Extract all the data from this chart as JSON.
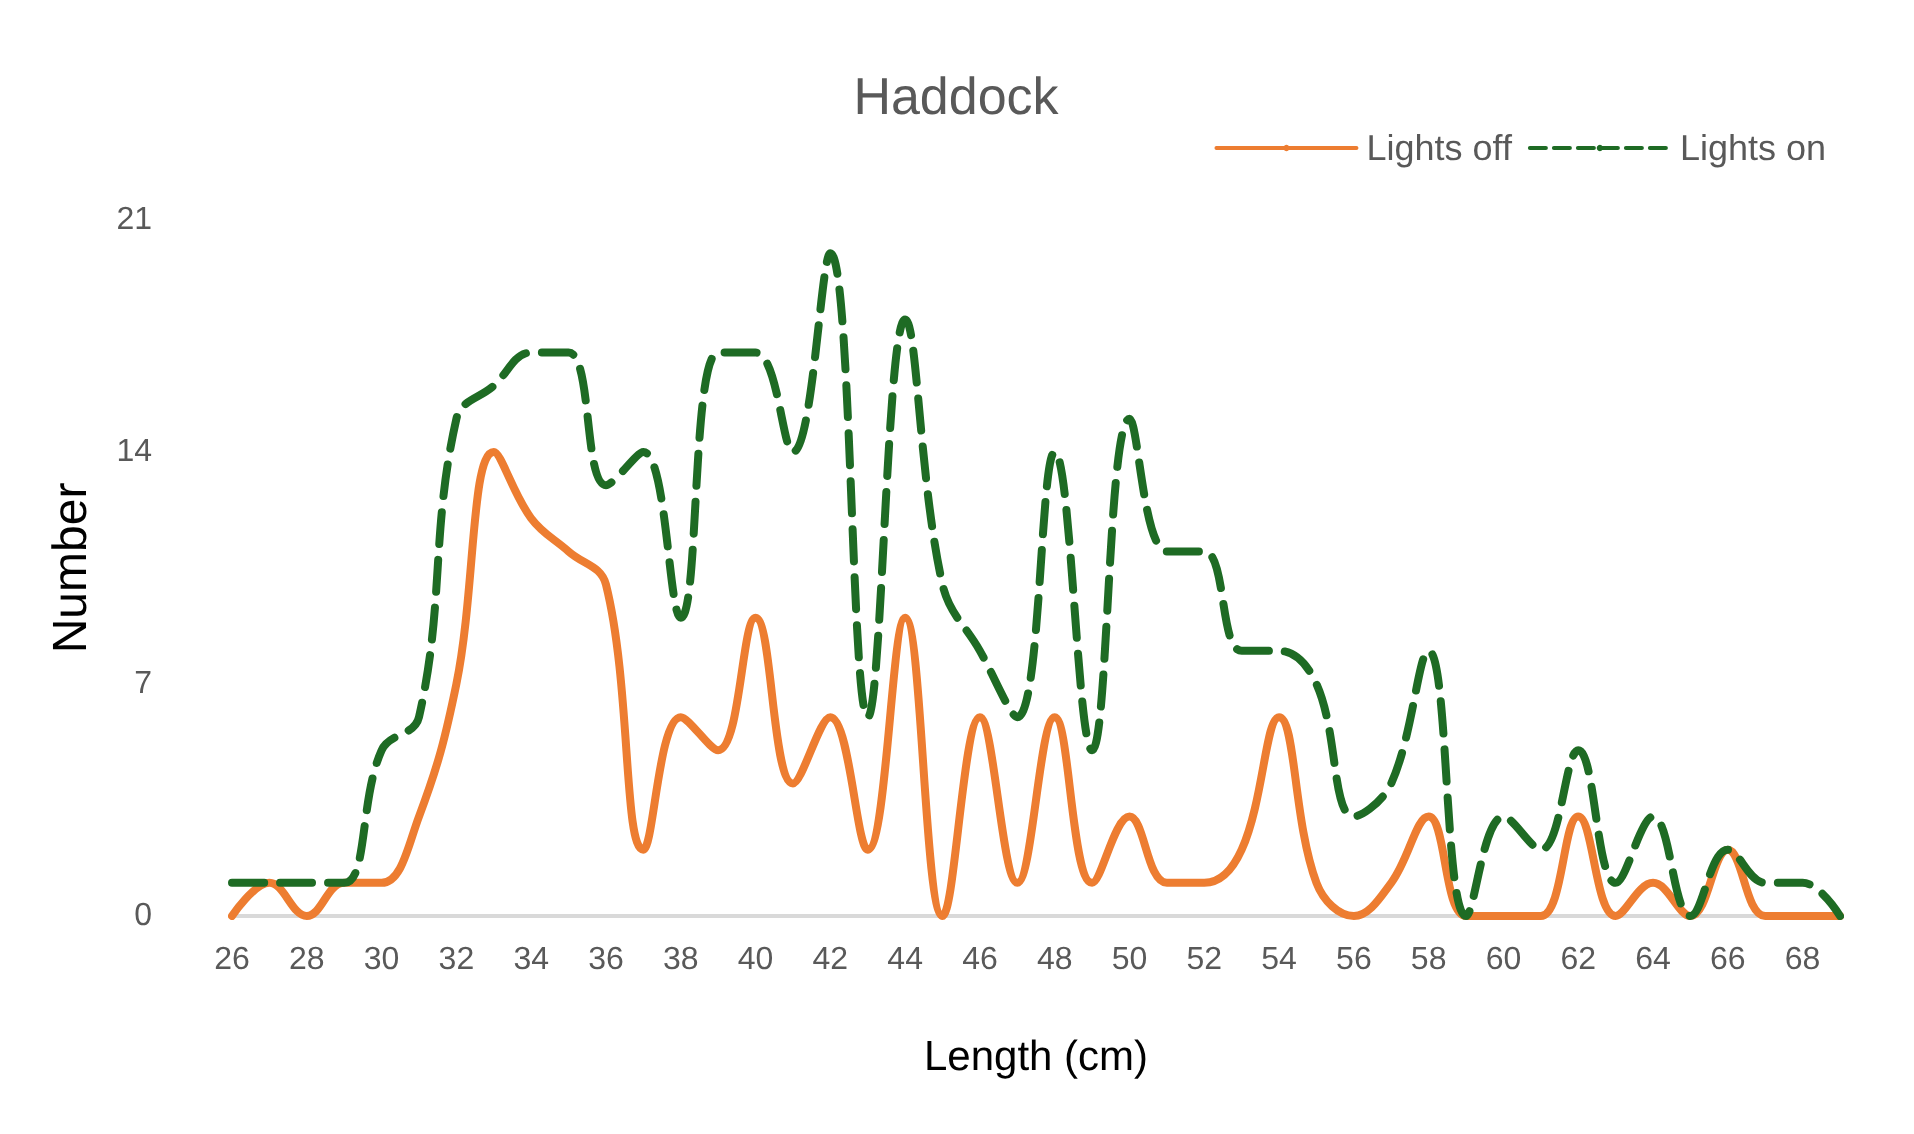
{
  "chart_data": {
    "type": "line",
    "title": "Haddock",
    "xlabel": "Length (cm)",
    "ylabel": "Number",
    "categories": [
      "26",
      null,
      "28",
      null,
      "30",
      null,
      "32",
      null,
      "34",
      null,
      "36",
      null,
      "38",
      null,
      "40",
      null,
      "42",
      null,
      "44",
      null,
      "46",
      null,
      "48",
      null,
      "50",
      null,
      "52",
      null,
      "54",
      null,
      "56",
      null,
      "58",
      null,
      "60",
      null,
      "62",
      null,
      "64",
      null,
      "66",
      null,
      "68",
      null
    ],
    "series": [
      {
        "name": "Lights off",
        "color": "#ed7d31",
        "line_style": "solid",
        "values": [
          0,
          1,
          0,
          1,
          1,
          3,
          7,
          14,
          12,
          11,
          10,
          2,
          6,
          5,
          9,
          4,
          6,
          2,
          9,
          0,
          6,
          1,
          6,
          1,
          3,
          1,
          1,
          2,
          6,
          1,
          0,
          1,
          3,
          0,
          0,
          0,
          3,
          0,
          1,
          0,
          2,
          0,
          0,
          0
        ]
      },
      {
        "name": "Lights on",
        "color": "#1e6b24",
        "line_style": "dashed",
        "values": [
          1,
          1,
          1,
          1,
          5,
          6,
          15,
          16,
          17,
          17,
          13,
          14,
          9,
          17,
          17,
          14,
          20,
          6,
          18,
          10,
          8,
          6,
          14,
          5,
          15,
          11,
          11,
          8,
          8,
          7,
          3,
          4,
          8,
          0,
          3,
          2,
          5,
          1,
          3,
          0,
          2,
          1,
          1,
          0
        ]
      }
    ],
    "ylim": [
      0,
      21
    ],
    "yticks": [
      0,
      7,
      14,
      21
    ],
    "grid": false,
    "legend": "top right",
    "marker": "none"
  }
}
